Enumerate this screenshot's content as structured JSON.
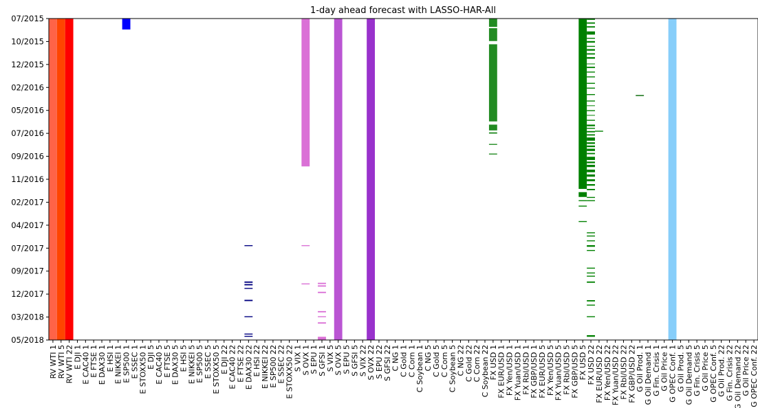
{
  "chart_data": {
    "type": "heatmap",
    "title": "1-day ahead forecast with LASSO-HAR-All",
    "xlabel": "",
    "ylabel": "",
    "y_tick_labels": [
      "07/2015",
      "10/2015",
      "12/2015",
      "02/2016",
      "05/2016",
      "07/2016",
      "09/2016",
      "11/2016",
      "02/2017",
      "04/2017",
      "07/2017",
      "09/2017",
      "12/2017",
      "03/2018",
      "05/2018"
    ],
    "x_tick_labels": [
      "RV WTI 1",
      "RV WTI 5",
      "RV WTI 22",
      "E DJI 1",
      "E CAC40 1",
      "E FTSE 1",
      "E DAX30 1",
      "E HSI 1",
      "E NIKKEI 1",
      "E SP500 1",
      "E SSEC 1",
      "E STOXX50 1",
      "E DJI 5",
      "E CAC40 5",
      "E FTSE 5",
      "E DAX30 5",
      "E HSI 5",
      "E NIKKEI 5",
      "E SP500 5",
      "E SSEC 5",
      "E STOXX50 5",
      "E DJI 22",
      "E CAC40 22",
      "E FTSE 22",
      "E DAX30 22",
      "E HSI 22",
      "E NIKKEI 22",
      "E SP500 22",
      "E SSEC 22",
      "E STOXX50 22",
      "S VIX 1",
      "S OVX 1",
      "S EPU 1",
      "S GFSI 1",
      "S VIX 5",
      "S OVX 5",
      "S EPU 5",
      "S GFSI 5",
      "S VIX 22",
      "S OVX 22",
      "S EPU 22",
      "S GFSI 22",
      "C NG 1",
      "C Gold 1",
      "C Corn 1",
      "C Soybean 1",
      "C NG 5",
      "C Gold 5",
      "C Corn 5",
      "C Soybean 5",
      "C NG 22",
      "C Gold 22",
      "C Corn 22",
      "C Soybean 22",
      "FX USD 1",
      "FX EUR/USD 1",
      "FX Yen/USD 1",
      "FX Yuan/USD 1",
      "FX Rbl/USD 1",
      "FX GBP/USD 1",
      "FX EUR/USD 5",
      "FX Yen/USD 5",
      "FX Yuan/USD 5",
      "FX Rbl/USD 5",
      "FX GBP/USD 5",
      "FX USD 5",
      "FX USD 22",
      "FX EUR/USD 22",
      "FX Yen/USD 22",
      "FX Yuan/USD 22",
      "FX Rbl/USD 22",
      "FX GBP/USD 22",
      "G Oil Prod. 1",
      "G Oil Demand 1",
      "G Fin. Crisis 1",
      "G Oil Price 1",
      "G OPEC Conf. 1",
      "G Oil Prod. 5",
      "G Oil Demand 5",
      "G Fin. Crisis 5",
      "G Oil Price 5",
      "G OPEC Conf. 5",
      "G Oil Prod. 22",
      "G Fin. Crisis 22",
      "G Oil Demand 22",
      "G Oil Price 22",
      "G OPEC Conf. 22"
    ],
    "y_range": [
      0,
      1
    ],
    "grid": false,
    "legend": "none",
    "n_rows": 200,
    "columns": [
      {
        "index": 0,
        "color": "#ff6347",
        "selected": "all"
      },
      {
        "index": 1,
        "color": "#ff4500",
        "selected": "all"
      },
      {
        "index": 2,
        "color": "#ff0000",
        "selected": "all"
      },
      {
        "index": 9,
        "color": "#0000ff",
        "segments": [
          [
            0.0,
            0.034
          ]
        ]
      },
      {
        "index": 24,
        "color": "#000080",
        "segments": [
          [
            0.705,
            0.708
          ],
          [
            0.818,
            0.822
          ],
          [
            0.826,
            0.83
          ],
          [
            0.838,
            0.841
          ],
          [
            0.875,
            0.879
          ],
          [
            0.926,
            0.929
          ],
          [
            0.98,
            0.983
          ],
          [
            0.987,
            0.99
          ]
        ]
      },
      {
        "index": 31,
        "color": "#da70d6",
        "segments": [
          [
            0.0,
            0.46
          ],
          [
            0.705,
            0.708
          ],
          [
            0.824,
            0.827
          ]
        ]
      },
      {
        "index": 33,
        "color": "#da70d6",
        "segments": [
          [
            0.822,
            0.826
          ],
          [
            0.83,
            0.834
          ],
          [
            0.85,
            0.854
          ],
          [
            0.91,
            0.914
          ],
          [
            0.926,
            0.929
          ],
          [
            0.945,
            0.949
          ],
          [
            0.99,
            1.0
          ]
        ]
      },
      {
        "index": 35,
        "color": "#ba55d3",
        "selected": "all"
      },
      {
        "index": 39,
        "color": "#9932cc",
        "selected": "all"
      },
      {
        "index": 54,
        "color": "#228b22",
        "segments": [
          [
            0.0,
            0.026
          ],
          [
            0.03,
            0.07
          ],
          [
            0.08,
            0.32
          ],
          [
            0.33,
            0.348
          ],
          [
            0.354,
            0.358
          ],
          [
            0.39,
            0.393
          ],
          [
            0.42,
            0.423
          ]
        ]
      },
      {
        "index": 65,
        "color": "#008000",
        "segments": [
          [
            0.0,
            0.53
          ],
          [
            0.54,
            0.555
          ],
          [
            0.565,
            0.568
          ],
          [
            0.582,
            0.585
          ],
          [
            0.63,
            0.633
          ]
        ]
      },
      {
        "index": 66,
        "color": "#008000",
        "segments": [
          [
            0.0,
            0.004
          ],
          [
            0.012,
            0.016
          ],
          [
            0.024,
            0.028
          ],
          [
            0.04,
            0.05
          ],
          [
            0.06,
            0.063
          ],
          [
            0.07,
            0.075
          ],
          [
            0.085,
            0.088
          ],
          [
            0.095,
            0.1
          ],
          [
            0.108,
            0.112
          ],
          [
            0.12,
            0.125
          ],
          [
            0.14,
            0.142
          ],
          [
            0.15,
            0.154
          ],
          [
            0.165,
            0.168
          ],
          [
            0.18,
            0.183
          ],
          [
            0.2,
            0.203
          ],
          [
            0.215,
            0.218
          ],
          [
            0.235,
            0.238
          ],
          [
            0.255,
            0.258
          ],
          [
            0.27,
            0.272
          ],
          [
            0.285,
            0.288
          ],
          [
            0.3,
            0.302
          ],
          [
            0.315,
            0.318
          ],
          [
            0.33,
            0.335
          ],
          [
            0.34,
            0.343
          ],
          [
            0.35,
            0.354
          ],
          [
            0.36,
            0.364
          ],
          [
            0.37,
            0.38
          ],
          [
            0.385,
            0.39
          ],
          [
            0.395,
            0.4
          ],
          [
            0.405,
            0.412
          ],
          [
            0.418,
            0.422
          ],
          [
            0.43,
            0.44
          ],
          [
            0.445,
            0.45
          ],
          [
            0.455,
            0.462
          ],
          [
            0.47,
            0.478
          ],
          [
            0.485,
            0.492
          ],
          [
            0.5,
            0.506
          ],
          [
            0.515,
            0.52
          ],
          [
            0.53,
            0.534
          ],
          [
            0.555,
            0.558
          ],
          [
            0.565,
            0.568
          ],
          [
            0.665,
            0.668
          ],
          [
            0.675,
            0.678
          ],
          [
            0.69,
            0.693
          ],
          [
            0.705,
            0.71
          ],
          [
            0.72,
            0.723
          ],
          [
            0.775,
            0.778
          ],
          [
            0.79,
            0.793
          ],
          [
            0.8,
            0.803
          ],
          [
            0.818,
            0.822
          ],
          [
            0.876,
            0.88
          ],
          [
            0.89,
            0.893
          ],
          [
            0.926,
            0.929
          ],
          [
            0.985,
            0.99
          ]
        ]
      },
      {
        "index": 67,
        "color": "#008000",
        "segments": [
          [
            0.349,
            0.352
          ]
        ]
      },
      {
        "index": 72,
        "color": "#006400",
        "segments": [
          [
            0.238,
            0.241
          ]
        ]
      },
      {
        "index": 76,
        "color": "#87cefa",
        "selected": "all"
      }
    ]
  }
}
